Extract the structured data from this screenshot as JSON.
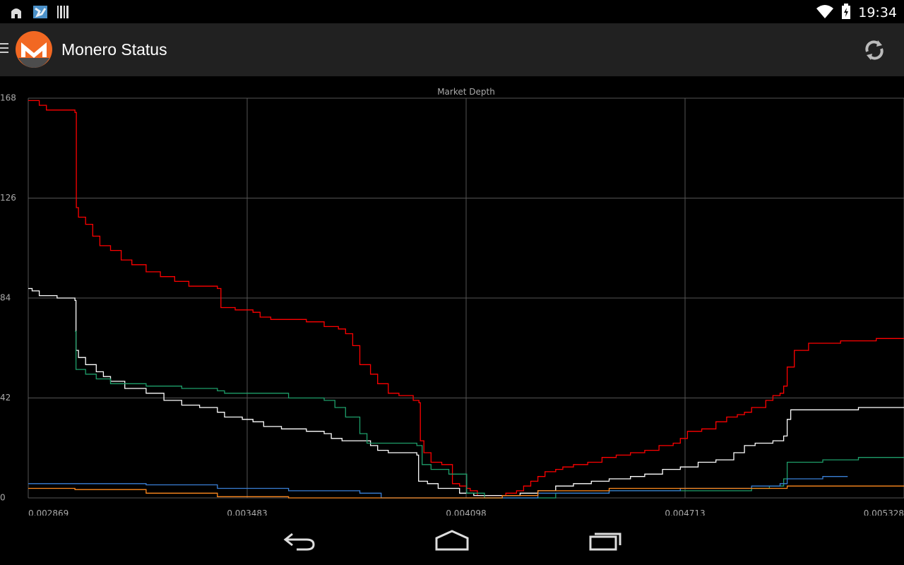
{
  "status_bar": {
    "time": "19:34",
    "icons": [
      "android-notification-icon",
      "map-notification-icon",
      "barcode-notification-icon",
      "wifi-icon",
      "battery-charging-icon"
    ]
  },
  "action_bar": {
    "title": "Monero Status",
    "icons": [
      "menu-icon",
      "monero-logo",
      "refresh-icon"
    ]
  },
  "colors": {
    "background": "#000000",
    "action_bar": "#212121",
    "grid": "#555555",
    "label": "#aaaaaa",
    "monero_orange": "#f26822"
  },
  "nav_bar": {
    "icons": [
      "back-icon",
      "home-icon",
      "recents-icon"
    ]
  },
  "chart_data": {
    "type": "line",
    "title": "Market Depth",
    "xlabel": "",
    "ylabel": "",
    "xlim": [
      0.002869,
      0.005328
    ],
    "ylim": [
      0,
      168
    ],
    "x_ticks": [
      "0.002869",
      "0.003483",
      "0.004098",
      "0.004713",
      "0.005328"
    ],
    "y_ticks": [
      "168",
      "126",
      "84",
      "42",
      "0"
    ],
    "grid": true,
    "legend": "none",
    "step": true,
    "series": [
      {
        "color": "#ff0000",
        "points": [
          [
            0.002869,
            167
          ],
          [
            0.0029,
            165
          ],
          [
            0.00292,
            163
          ],
          [
            0.003,
            162
          ],
          [
            0.003004,
            122
          ],
          [
            0.00301,
            118
          ],
          [
            0.00303,
            115
          ],
          [
            0.00305,
            110
          ],
          [
            0.00307,
            106
          ],
          [
            0.0031,
            104
          ],
          [
            0.00313,
            100
          ],
          [
            0.00316,
            98
          ],
          [
            0.0032,
            95
          ],
          [
            0.00324,
            93
          ],
          [
            0.00328,
            91
          ],
          [
            0.00332,
            89
          ],
          [
            0.0034,
            88
          ],
          [
            0.00341,
            80
          ],
          [
            0.00345,
            79
          ],
          [
            0.0035,
            78
          ],
          [
            0.00352,
            76
          ],
          [
            0.00355,
            75
          ],
          [
            0.00365,
            74
          ],
          [
            0.0037,
            73
          ],
          [
            0.0037,
            72
          ],
          [
            0.00374,
            71
          ],
          [
            0.00376,
            69
          ],
          [
            0.00378,
            64
          ],
          [
            0.0038,
            56
          ],
          [
            0.00383,
            52
          ],
          [
            0.00385,
            48
          ],
          [
            0.00388,
            44
          ],
          [
            0.00391,
            43
          ],
          [
            0.00395,
            41
          ],
          [
            0.003966,
            40
          ],
          [
            0.00397,
            24
          ],
          [
            0.00398,
            19
          ],
          [
            0.004,
            15
          ],
          [
            0.00403,
            14
          ],
          [
            0.00405,
            14
          ],
          [
            0.00406,
            6
          ],
          [
            0.00408,
            5
          ],
          [
            0.0041,
            4
          ],
          [
            0.00411,
            3
          ],
          [
            0.00413,
            1
          ],
          [
            0.00418,
            1
          ],
          [
            0.00421,
            2
          ],
          [
            0.00424,
            3
          ],
          [
            0.00426,
            5
          ],
          [
            0.00428,
            7
          ],
          [
            0.0043,
            9
          ],
          [
            0.00432,
            11
          ],
          [
            0.00435,
            12
          ],
          [
            0.00437,
            13
          ],
          [
            0.0044,
            14
          ],
          [
            0.00444,
            15
          ],
          [
            0.00448,
            17
          ],
          [
            0.00452,
            18
          ],
          [
            0.00456,
            19
          ],
          [
            0.0046,
            20
          ],
          [
            0.00464,
            22
          ],
          [
            0.00468,
            23
          ],
          [
            0.0047,
            25
          ],
          [
            0.00472,
            28
          ],
          [
            0.00476,
            29
          ],
          [
            0.0048,
            32
          ],
          [
            0.00483,
            34
          ],
          [
            0.00486,
            35
          ],
          [
            0.00488,
            36
          ],
          [
            0.0049,
            38
          ],
          [
            0.00494,
            41
          ],
          [
            0.00496,
            43
          ],
          [
            0.00498,
            44
          ],
          [
            0.00499,
            47
          ],
          [
            0.005,
            55
          ],
          [
            0.00502,
            62
          ],
          [
            0.00506,
            65
          ],
          [
            0.00511,
            65
          ],
          [
            0.00515,
            66
          ],
          [
            0.0052,
            66
          ],
          [
            0.00525,
            67
          ],
          [
            0.005328,
            67
          ]
        ]
      },
      {
        "color": "#ffffff",
        "points": [
          [
            0.002869,
            88
          ],
          [
            0.00288,
            87
          ],
          [
            0.0029,
            85
          ],
          [
            0.00295,
            84
          ],
          [
            0.003,
            83
          ],
          [
            0.003003,
            62
          ],
          [
            0.00301,
            59
          ],
          [
            0.00303,
            56
          ],
          [
            0.00306,
            53
          ],
          [
            0.00308,
            51
          ],
          [
            0.0031,
            49
          ],
          [
            0.00314,
            46
          ],
          [
            0.0032,
            44
          ],
          [
            0.00325,
            41
          ],
          [
            0.0033,
            39
          ],
          [
            0.00335,
            38
          ],
          [
            0.0034,
            36
          ],
          [
            0.00342,
            34
          ],
          [
            0.00347,
            33
          ],
          [
            0.0035,
            32
          ],
          [
            0.00353,
            30
          ],
          [
            0.00358,
            29
          ],
          [
            0.00365,
            28
          ],
          [
            0.0037,
            27
          ],
          [
            0.00372,
            25
          ],
          [
            0.00375,
            24
          ],
          [
            0.0038,
            24
          ],
          [
            0.00383,
            22
          ],
          [
            0.00385,
            20
          ],
          [
            0.00388,
            19
          ],
          [
            0.00392,
            19
          ],
          [
            0.00396,
            18
          ],
          [
            0.003965,
            7
          ],
          [
            0.00399,
            6
          ],
          [
            0.00402,
            4
          ],
          [
            0.00405,
            4
          ],
          [
            0.00408,
            2
          ],
          [
            0.00412,
            1
          ],
          [
            0.0042,
            1
          ],
          [
            0.00425,
            2
          ],
          [
            0.0043,
            3
          ],
          [
            0.00435,
            5
          ],
          [
            0.0044,
            6
          ],
          [
            0.00445,
            7
          ],
          [
            0.0045,
            8
          ],
          [
            0.00456,
            9
          ],
          [
            0.0046,
            10
          ],
          [
            0.00465,
            12
          ],
          [
            0.0047,
            13
          ],
          [
            0.00475,
            15
          ],
          [
            0.0048,
            16
          ],
          [
            0.00485,
            19
          ],
          [
            0.00488,
            22
          ],
          [
            0.00491,
            23
          ],
          [
            0.00496,
            24
          ],
          [
            0.00499,
            26
          ],
          [
            0.005,
            33
          ],
          [
            0.00501,
            37
          ],
          [
            0.0051,
            37
          ],
          [
            0.0052,
            38
          ],
          [
            0.005328,
            38
          ]
        ]
      },
      {
        "color": "#1e9e6a",
        "points": [
          [
            0.003,
            70
          ],
          [
            0.003003,
            54
          ],
          [
            0.00303,
            52
          ],
          [
            0.00306,
            50
          ],
          [
            0.0031,
            48
          ],
          [
            0.0032,
            47
          ],
          [
            0.0033,
            46
          ],
          [
            0.0034,
            45
          ],
          [
            0.00342,
            44
          ],
          [
            0.0036,
            42
          ],
          [
            0.0037,
            41
          ],
          [
            0.00373,
            38
          ],
          [
            0.00376,
            34
          ],
          [
            0.0038,
            27
          ],
          [
            0.00382,
            23
          ],
          [
            0.00396,
            22
          ],
          [
            0.003975,
            14
          ],
          [
            0.004,
            12
          ],
          [
            0.00405,
            10
          ],
          [
            0.0041,
            2
          ],
          [
            0.00415,
            0
          ],
          [
            0.00425,
            0
          ],
          [
            0.00435,
            2
          ],
          [
            0.0045,
            3
          ],
          [
            0.0047,
            3
          ],
          [
            0.0049,
            4
          ],
          [
            0.00495,
            5
          ],
          [
            0.00499,
            8
          ],
          [
            0.005,
            15
          ],
          [
            0.0051,
            16
          ],
          [
            0.0052,
            17
          ],
          [
            0.005328,
            17
          ]
        ]
      },
      {
        "color": "#3a7fd6",
        "points": [
          [
            0.002869,
            6
          ],
          [
            0.003,
            6
          ],
          [
            0.0032,
            5.5
          ],
          [
            0.0034,
            4
          ],
          [
            0.0036,
            3
          ],
          [
            0.0038,
            2
          ],
          [
            0.00386,
            0
          ],
          [
            0.004,
            0
          ],
          [
            0.00415,
            0
          ],
          [
            0.0043,
            2
          ],
          [
            0.0045,
            3
          ],
          [
            0.0047,
            4
          ],
          [
            0.0049,
            5
          ],
          [
            0.00498,
            6
          ],
          [
            0.005,
            8
          ],
          [
            0.0051,
            9
          ],
          [
            0.00517,
            9
          ]
        ]
      },
      {
        "color": "#ff8a1e",
        "points": [
          [
            0.002869,
            4
          ],
          [
            0.003,
            3.5
          ],
          [
            0.0032,
            2
          ],
          [
            0.0034,
            0.5
          ],
          [
            0.0036,
            0
          ],
          [
            0.0041,
            0
          ],
          [
            0.0042,
            1
          ],
          [
            0.0043,
            3
          ],
          [
            0.0045,
            4
          ],
          [
            0.0047,
            4
          ],
          [
            0.005,
            5
          ],
          [
            0.005328,
            5
          ]
        ]
      }
    ]
  }
}
